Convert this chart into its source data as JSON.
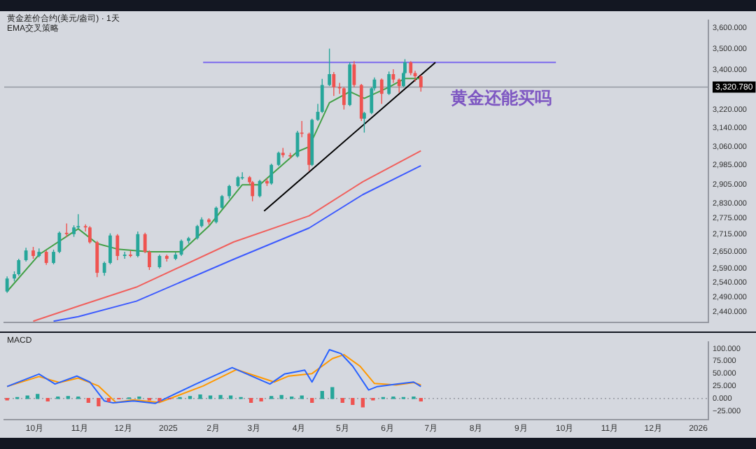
{
  "chart_data": [
    {
      "type": "candlestick",
      "title": "黄金差价合约(美元/盎司) · 1天",
      "subtitle": "EMA交叉策略",
      "annotations": [
        "黄金还能买吗"
      ],
      "x": [
        "2024-09-12",
        "2024-09-17",
        "2024-09-20",
        "2024-09-25",
        "2024-09-30",
        "2024-10-04",
        "2024-10-09",
        "2024-10-14",
        "2024-10-18",
        "2024-10-23",
        "2024-10-28",
        "2024-10-31",
        "2024-11-05",
        "2024-11-08",
        "2024-11-13",
        "2024-11-18",
        "2024-11-22",
        "2024-11-27",
        "2024-12-02",
        "2024-12-06",
        "2024-12-11",
        "2024-12-16",
        "2024-12-19",
        "2024-12-26",
        "2024-12-31",
        "2025-01-06",
        "2025-01-10",
        "2025-01-15",
        "2025-01-21",
        "2025-01-24",
        "2025-01-29",
        "2025-02-03",
        "2025-02-07",
        "2025-02-12",
        "2025-02-18",
        "2025-02-21",
        "2025-02-26",
        "2025-02-28",
        "2025-03-05",
        "2025-03-10",
        "2025-03-13",
        "2025-03-18",
        "2025-03-21",
        "2025-03-26",
        "2025-03-31",
        "2025-04-03",
        "2025-04-08",
        "2025-04-10",
        "2025-04-14",
        "2025-04-17",
        "2025-04-22",
        "2025-04-25",
        "2025-04-29",
        "2025-05-02",
        "2025-05-06",
        "2025-05-09",
        "2025-05-14",
        "2025-05-16",
        "2025-05-21",
        "2025-05-23",
        "2025-05-28",
        "2025-06-02",
        "2025-06-05",
        "2025-06-09",
        "2025-06-12",
        "2025-06-13",
        "2025-06-17",
        "2025-06-20",
        "2025-06-24"
      ],
      "ohlc": [
        [
          2510,
          2562,
          2505,
          2555
        ],
        [
          2555,
          2580,
          2545,
          2570
        ],
        [
          2570,
          2625,
          2565,
          2620
        ],
        [
          2620,
          2665,
          2615,
          2655
        ],
        [
          2655,
          2668,
          2625,
          2635
        ],
        [
          2635,
          2662,
          2630,
          2650
        ],
        [
          2650,
          2655,
          2603,
          2610
        ],
        [
          2610,
          2658,
          2605,
          2650
        ],
        [
          2650,
          2725,
          2645,
          2720
        ],
        [
          2720,
          2755,
          2705,
          2715
        ],
        [
          2715,
          2748,
          2705,
          2740
        ],
        [
          2740,
          2790,
          2735,
          2745
        ],
        [
          2745,
          2752,
          2725,
          2740
        ],
        [
          2740,
          2745,
          2680,
          2685
        ],
        [
          2685,
          2690,
          2560,
          2575
        ],
        [
          2575,
          2615,
          2565,
          2610
        ],
        [
          2610,
          2718,
          2605,
          2710
        ],
        [
          2710,
          2715,
          2620,
          2635
        ],
        [
          2635,
          2650,
          2625,
          2640
        ],
        [
          2640,
          2655,
          2630,
          2635
        ],
        [
          2635,
          2725,
          2630,
          2715
        ],
        [
          2715,
          2720,
          2645,
          2650
        ],
        [
          2650,
          2655,
          2585,
          2595
        ],
        [
          2595,
          2640,
          2590,
          2635
        ],
        [
          2635,
          2640,
          2615,
          2625
        ],
        [
          2625,
          2648,
          2620,
          2640
        ],
        [
          2640,
          2695,
          2635,
          2690
        ],
        [
          2690,
          2705,
          2680,
          2700
        ],
        [
          2700,
          2750,
          2695,
          2745
        ],
        [
          2745,
          2778,
          2740,
          2770
        ],
        [
          2770,
          2775,
          2750,
          2760
        ],
        [
          2760,
          2820,
          2755,
          2815
        ],
        [
          2815,
          2865,
          2810,
          2860
        ],
        [
          2860,
          2905,
          2850,
          2900
        ],
        [
          2900,
          2940,
          2895,
          2935
        ],
        [
          2935,
          2955,
          2925,
          2935
        ],
        [
          2935,
          2940,
          2905,
          2915
        ],
        [
          2915,
          2920,
          2840,
          2860
        ],
        [
          2860,
          2925,
          2855,
          2920
        ],
        [
          2920,
          2930,
          2900,
          2910
        ],
        [
          2910,
          2990,
          2905,
          2985
        ],
        [
          2985,
          3040,
          2980,
          3035
        ],
        [
          3035,
          3055,
          3015,
          3025
        ],
        [
          3025,
          3035,
          3010,
          3020
        ],
        [
          3020,
          3128,
          3015,
          3120
        ],
        [
          3120,
          3170,
          3100,
          3115
        ],
        [
          3115,
          3120,
          2960,
          2985
        ],
        [
          2985,
          3180,
          2980,
          3175
        ],
        [
          3175,
          3245,
          3170,
          3210
        ],
        [
          3210,
          3358,
          3205,
          3330
        ],
        [
          3330,
          3500,
          3325,
          3380
        ],
        [
          3380,
          3390,
          3280,
          3320
        ],
        [
          3320,
          3340,
          3290,
          3315
        ],
        [
          3315,
          3320,
          3220,
          3240
        ],
        [
          3240,
          3435,
          3235,
          3425
        ],
        [
          3425,
          3440,
          3320,
          3330
        ],
        [
          3330,
          3335,
          3170,
          3180
        ],
        [
          3180,
          3210,
          3120,
          3205
        ],
        [
          3205,
          3320,
          3200,
          3315
        ],
        [
          3315,
          3365,
          3305,
          3355
        ],
        [
          3355,
          3360,
          3245,
          3290
        ],
        [
          3290,
          3392,
          3285,
          3380
        ],
        [
          3380,
          3403,
          3340,
          3355
        ],
        [
          3355,
          3360,
          3295,
          3325
        ],
        [
          3325,
          3392,
          3320,
          3385
        ],
        [
          3385,
          3450,
          3380,
          3435
        ],
        [
          3435,
          3440,
          3375,
          3385
        ],
        [
          3385,
          3395,
          3345,
          3370
        ],
        [
          3370,
          3375,
          3300,
          3320
        ]
      ],
      "series": [
        {
          "type": "line",
          "color": "#43a047",
          "x": [
            "2024-09-12",
            "2024-10-04",
            "2024-10-31",
            "2024-11-13",
            "2024-11-27",
            "2024-12-19",
            "2025-01-10",
            "2025-01-29",
            "2025-02-21",
            "2025-03-05",
            "2025-03-31",
            "2025-04-08",
            "2025-04-22",
            "2025-05-06",
            "2025-05-16",
            "2025-06-02",
            "2025-06-13",
            "2025-06-24"
          ],
          "values": [
            2510,
            2640,
            2735,
            2680,
            2660,
            2650,
            2650,
            2745,
            2905,
            2905,
            3040,
            3060,
            3250,
            3300,
            3270,
            3320,
            3360,
            3360
          ]
        },
        {
          "type": "line",
          "color": "#f0605d",
          "x": [
            "2024-09-30",
            "2024-10-31",
            "2024-12-10",
            "2025-02-15",
            "2025-04-08",
            "2025-05-15",
            "2025-06-24"
          ],
          "values": [
            2410,
            2460,
            2525,
            2686,
            2784,
            2917,
            3043
          ]
        },
        {
          "type": "line",
          "color": "#3d5afe",
          "x": [
            "2024-10-14",
            "2024-10-31",
            "2024-12-10",
            "2025-02-15",
            "2025-04-08",
            "2025-05-15",
            "2025-06-24"
          ],
          "values": [
            2410,
            2425,
            2477,
            2623,
            2738,
            2866,
            2982
          ]
        },
        {
          "type": "line",
          "color": "#000000",
          "x": [
            "2025-03-08",
            "2025-07-04"
          ],
          "values": [
            2802,
            3435
          ]
        },
        {
          "type": "line",
          "color": "#7b68ee",
          "x": [
            "2025-01-25",
            "2025-09-25"
          ],
          "values": [
            3435,
            3435
          ]
        }
      ],
      "ref_lines": [
        {
          "axis": "y",
          "value": 3320.78,
          "label": "3,320.780",
          "color": "#9598a1"
        }
      ],
      "log": true,
      "xlim": [
        "2024-09-10",
        "2026-01-08"
      ],
      "ylim": [
        2405,
        3640
      ],
      "yticks": [
        {
          "value": 3600,
          "label": "3,600.000"
        },
        {
          "value": 3500,
          "label": "3,500.000"
        },
        {
          "value": 3400,
          "label": "3,400.000"
        },
        {
          "value": 3220,
          "label": "3,220.000"
        },
        {
          "value": 3140,
          "label": "3,140.000"
        },
        {
          "value": 3060,
          "label": "3,060.000"
        },
        {
          "value": 2985,
          "label": "2,985.000"
        },
        {
          "value": 2905,
          "label": "2,905.000"
        },
        {
          "value": 2830,
          "label": "2,830.000"
        },
        {
          "value": 2775,
          "label": "2,775.000"
        },
        {
          "value": 2715,
          "label": "2,715.000"
        },
        {
          "value": 2650,
          "label": "2,650.000"
        },
        {
          "value": 2590,
          "label": "2,590.000"
        },
        {
          "value": 2540,
          "label": "2,540.000"
        },
        {
          "value": 2490,
          "label": "2,490.000"
        },
        {
          "value": 2440,
          "label": "2,440.000"
        }
      ],
      "tick_labels": "y"
    },
    {
      "type": "line",
      "title": "MACD",
      "series": [
        {
          "type": "bar",
          "colors": [
            "#ef5350",
            "#26a69a",
            "#26a69a",
            "#26a69a",
            "#ef5350",
            "#26a69a",
            "#26a69a",
            "#26a69a",
            "#ef5350",
            "#ef5350",
            "#ef5350",
            "#ef5350",
            "#26a69a",
            "#26a69a",
            "#ef5350",
            "#ef5350",
            "#ef5350",
            "#26a69a",
            "#26a69a",
            "#26a69a",
            "#26a69a",
            "#26a69a",
            "#26a69a",
            "#26a69a",
            "#ef5350",
            "#ef5350",
            "#26a69a",
            "#26a69a",
            "#26a69a",
            "#26a69a",
            "#ef5350",
            "#26a69a",
            "#26a69a",
            "#ef5350",
            "#ef5350",
            "#ef5350",
            "#ef5350",
            "#26a69a",
            "#26a69a",
            "#26a69a",
            "#26a69a",
            "#ef5350"
          ],
          "x": [
            "2024-09-12",
            "2024-09-19",
            "2024-09-26",
            "2024-10-03",
            "2024-10-10",
            "2024-10-17",
            "2024-10-24",
            "2024-10-31",
            "2024-11-07",
            "2024-11-14",
            "2024-11-21",
            "2024-11-28",
            "2024-12-05",
            "2024-12-12",
            "2024-12-19",
            "2024-12-26",
            "2025-01-02",
            "2025-01-09",
            "2025-01-16",
            "2025-01-23",
            "2025-01-30",
            "2025-02-06",
            "2025-02-13",
            "2025-02-20",
            "2025-02-27",
            "2025-03-06",
            "2025-03-13",
            "2025-03-20",
            "2025-03-27",
            "2025-04-03",
            "2025-04-10",
            "2025-04-17",
            "2025-04-24",
            "2025-05-01",
            "2025-05-08",
            "2025-05-15",
            "2025-05-22",
            "2025-05-29",
            "2025-06-05",
            "2025-06-12",
            "2025-06-19",
            "2025-06-24"
          ],
          "values": [
            -3,
            2,
            5,
            8,
            -5,
            3,
            4,
            3,
            -8,
            -15,
            -6,
            -1,
            1,
            3,
            -3,
            -5,
            -1,
            2,
            4,
            7,
            5,
            6,
            5,
            2,
            -8,
            -5,
            4,
            6,
            3,
            5,
            -8,
            14,
            22,
            -8,
            -12,
            -17,
            -3,
            2,
            3,
            2,
            3,
            -5
          ]
        },
        {
          "type": "line",
          "color": "#2962ff",
          "x": [
            "2024-09-12",
            "2024-10-04",
            "2024-10-15",
            "2024-10-30",
            "2024-11-08",
            "2024-11-18",
            "2024-11-24",
            "2024-12-08",
            "2024-12-23",
            "2025-01-20",
            "2025-02-14",
            "2025-03-12",
            "2025-03-22",
            "2025-04-05",
            "2025-04-10",
            "2025-04-22",
            "2025-04-30",
            "2025-05-08",
            "2025-05-19",
            "2025-05-25",
            "2025-06-08",
            "2025-06-19",
            "2025-06-24"
          ],
          "values": [
            24,
            49,
            29,
            45,
            33,
            -5,
            -9,
            -5,
            -10,
            29,
            62,
            29,
            49,
            57,
            33,
            98,
            90,
            65,
            17,
            24,
            29,
            33,
            24
          ]
        },
        {
          "type": "line",
          "color": "#ff9800",
          "x": [
            "2024-09-12",
            "2024-10-04",
            "2024-10-18",
            "2024-10-31",
            "2024-11-14",
            "2024-11-26",
            "2024-12-08",
            "2024-12-26",
            "2025-01-25",
            "2025-02-17",
            "2025-03-15",
            "2025-03-25",
            "2025-04-10",
            "2025-04-24",
            "2025-05-02",
            "2025-05-13",
            "2025-05-23",
            "2025-06-07",
            "2025-06-19",
            "2025-06-24"
          ],
          "values": [
            24,
            44,
            32,
            41,
            25,
            -8,
            -3,
            -8,
            25,
            58,
            33,
            45,
            50,
            80,
            88,
            65,
            30,
            27,
            32,
            27
          ]
        }
      ],
      "ref_lines": [
        {
          "axis": "y",
          "value": 0,
          "color": "#9598a1",
          "line_style": "dotted"
        }
      ],
      "xlim": [
        "2024-09-10",
        "2026-01-08"
      ],
      "ylim": [
        -42,
        114
      ],
      "xticks": [
        {
          "value": "2024-10-01",
          "label": "10月"
        },
        {
          "value": "2024-11-01",
          "label": "11月"
        },
        {
          "value": "2024-12-01",
          "label": "12月"
        },
        {
          "value": "2025-01-01",
          "label": "2025"
        },
        {
          "value": "2025-02-01",
          "label": "2月"
        },
        {
          "value": "2025-03-01",
          "label": "3月"
        },
        {
          "value": "2025-04-01",
          "label": "4月"
        },
        {
          "value": "2025-05-01",
          "label": "5月"
        },
        {
          "value": "2025-06-01",
          "label": "6月"
        },
        {
          "value": "2025-07-01",
          "label": "7月"
        },
        {
          "value": "2025-08-01",
          "label": "8月"
        },
        {
          "value": "2025-09-01",
          "label": "9月"
        },
        {
          "value": "2025-10-01",
          "label": "10月"
        },
        {
          "value": "2025-11-01",
          "label": "11月"
        },
        {
          "value": "2025-12-01",
          "label": "12月"
        },
        {
          "value": "2026-01-01",
          "label": "2026"
        }
      ],
      "yticks": [
        {
          "value": 100,
          "label": "100.000"
        },
        {
          "value": 75,
          "label": "75.000"
        },
        {
          "value": 50,
          "label": "50.000"
        },
        {
          "value": 25,
          "label": "25.000"
        },
        {
          "value": 0,
          "label": "0.000"
        },
        {
          "value": -25,
          "label": "−25.000"
        }
      ]
    }
  ]
}
